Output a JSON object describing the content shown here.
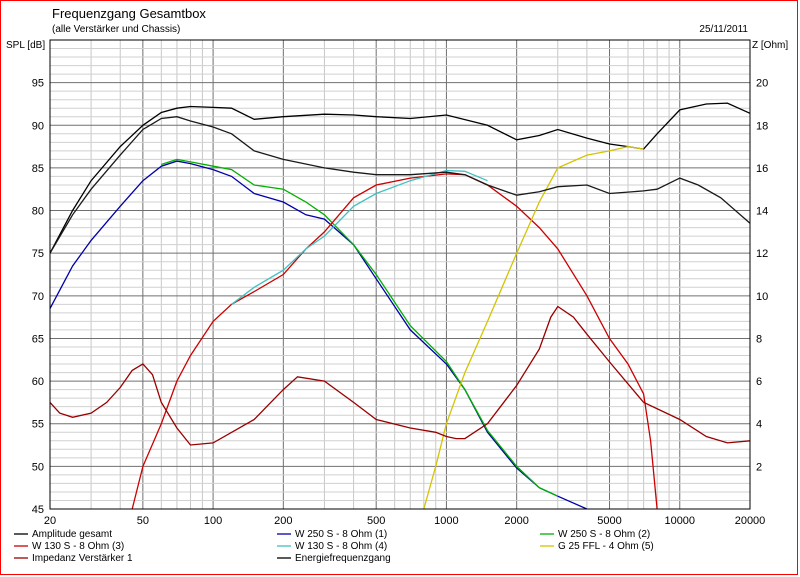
{
  "chart_data": {
    "type": "line",
    "title": "Frequenzgang Gesamtbox",
    "subtitle": "(alle Verstärker und Chassis)",
    "date": "25/11/2011",
    "ylabel": "SPL [dB]",
    "y2label": "Z [Ohm]",
    "x_scale": "log",
    "xlim": [
      20,
      20000
    ],
    "ylim": [
      45,
      100
    ],
    "y2lim": [
      0,
      22
    ],
    "x_ticks": [
      20,
      50,
      100,
      200,
      500,
      1000,
      2000,
      5000,
      10000,
      20000
    ],
    "x_tick_labels": [
      "20",
      "50",
      "100",
      "200",
      "500",
      "1000",
      "2000",
      "5000",
      "10000",
      "20000"
    ],
    "y_ticks": [
      45,
      50,
      55,
      60,
      65,
      70,
      75,
      80,
      85,
      90,
      95
    ],
    "y2_ticks": [
      2,
      4,
      6,
      8,
      10,
      12,
      14,
      16,
      18,
      20
    ],
    "grid": true,
    "legend_position": "bottom",
    "series": [
      {
        "name": "Amplitude gesamt",
        "axis": "y",
        "color": "#000000",
        "x": [
          20,
          25,
          30,
          40,
          50,
          60,
          70,
          80,
          100,
          120,
          150,
          200,
          300,
          400,
          500,
          700,
          1000,
          1500,
          2000,
          2500,
          3000,
          4000,
          5000,
          6000,
          7000,
          8000,
          10000,
          13000,
          16000,
          20000
        ],
        "y": [
          75,
          80,
          83.5,
          87.5,
          90,
          91.5,
          92,
          92.2,
          92.1,
          92,
          90.7,
          91,
          91.3,
          91.2,
          91,
          90.8,
          91.2,
          90,
          88.3,
          88.8,
          89.5,
          88.5,
          87.8,
          87.5,
          87.2,
          89,
          91.8,
          92.5,
          92.6,
          91.4
        ]
      },
      {
        "name": "W 250 S - 8 Ohm  (1)",
        "axis": "y",
        "color": "#0000aa",
        "x": [
          20,
          25,
          30,
          40,
          50,
          60,
          70,
          80,
          100,
          120,
          150,
          200,
          250,
          300,
          400,
          500,
          700,
          1000,
          1200,
          1500,
          2000,
          2500,
          3000,
          4000
        ],
        "y": [
          68.5,
          73.5,
          76.5,
          80.5,
          83.5,
          85.2,
          85.8,
          85.5,
          84.8,
          84,
          82,
          81,
          79.5,
          79,
          76,
          72,
          66,
          62,
          59,
          54,
          49.8,
          47.5,
          46.5,
          45
        ]
      },
      {
        "name": "W 250 S - 8 Ohm  (2)",
        "axis": "y",
        "color": "#00b000",
        "x": [
          60,
          70,
          80,
          100,
          120,
          150,
          200,
          250,
          300,
          400,
          500,
          700,
          1000,
          1200,
          1500,
          2000,
          2500,
          3000
        ],
        "y": [
          85.4,
          86,
          85.7,
          85.2,
          84.8,
          83,
          82.5,
          81,
          79.5,
          76,
          72.5,
          66.5,
          62.3,
          59,
          54.2,
          50,
          47.5,
          46.5
        ]
      },
      {
        "name": "W 130 S - 8 Ohm (3)",
        "axis": "y",
        "color": "#cc0000",
        "x": [
          45,
          50,
          60,
          70,
          80,
          100,
          120,
          150,
          200,
          250,
          300,
          400,
          500,
          700,
          1000,
          1200,
          1500,
          2000,
          2500,
          3000,
          4000,
          5000,
          6000,
          7000,
          7500,
          8000
        ],
        "y": [
          45,
          50,
          55,
          60,
          63,
          67,
          69,
          70.5,
          72.5,
          75.5,
          77.5,
          81.5,
          83,
          83.8,
          84.3,
          84.2,
          83,
          80.5,
          78,
          75.5,
          70,
          65,
          62,
          58.5,
          53,
          45
        ]
      },
      {
        "name": "W 130 S - 8 Ohm (4)",
        "axis": "y",
        "color": "#40c0c0",
        "x": [
          120,
          150,
          200,
          250,
          300,
          400,
          500,
          700,
          1000,
          1200,
          1500
        ],
        "y": [
          69,
          71,
          73,
          75.5,
          77,
          80.5,
          82,
          83.5,
          84.7,
          84.6,
          83.5
        ]
      },
      {
        "name": "G 25 FFL - 4 Ohm (5)",
        "axis": "y",
        "color": "#d4c400",
        "x": [
          800,
          900,
          1000,
          1200,
          1500,
          2000,
          2500,
          3000,
          4000,
          5000,
          6000,
          7000
        ],
        "y": [
          45,
          50,
          55,
          61,
          67,
          75,
          81,
          85,
          86.5,
          87,
          87.5,
          87.2
        ]
      },
      {
        "name": "Impedanz Verstärker 1",
        "axis": "y2",
        "color": "#990000",
        "x": [
          20,
          22,
          25,
          30,
          35,
          40,
          45,
          50,
          55,
          60,
          70,
          80,
          100,
          150,
          200,
          230,
          300,
          400,
          500,
          700,
          900,
          1000,
          1100,
          1200,
          1500,
          2000,
          2500,
          2800,
          3000,
          3500,
          4000,
          5000,
          7000,
          10000,
          13000,
          16000,
          20000
        ],
        "y": [
          5.0,
          4.5,
          4.3,
          4.5,
          5.0,
          5.7,
          6.5,
          6.8,
          6.3,
          5.0,
          3.8,
          3.0,
          3.1,
          4.2,
          5.6,
          6.2,
          6.0,
          5.0,
          4.2,
          3.8,
          3.6,
          3.4,
          3.3,
          3.3,
          4.0,
          5.8,
          7.5,
          9.0,
          9.5,
          9.0,
          8.2,
          6.9,
          5.0,
          4.2,
          3.4,
          3.1,
          3.2
        ]
      },
      {
        "name": "Energiefrequenzgang",
        "axis": "y",
        "color": "#1a1a1a",
        "x": [
          20,
          25,
          30,
          40,
          50,
          60,
          70,
          80,
          100,
          120,
          150,
          200,
          300,
          400,
          500,
          700,
          1000,
          1200,
          1500,
          2000,
          2500,
          3000,
          4000,
          5000,
          7000,
          8000,
          10000,
          12000,
          15000,
          20000
        ],
        "y": [
          75,
          79.5,
          82.5,
          86.5,
          89.5,
          90.8,
          91,
          90.5,
          89.8,
          89,
          87,
          86,
          85,
          84.5,
          84.2,
          84.2,
          84.5,
          84.2,
          83,
          81.8,
          82.2,
          82.8,
          83,
          82,
          82.3,
          82.5,
          83.8,
          83,
          81.5,
          78.5
        ]
      }
    ],
    "legend": [
      {
        "label": "Amplitude gesamt",
        "color": "#000000"
      },
      {
        "label": "W 250 S - 8 Ohm  (1)",
        "color": "#0000aa"
      },
      {
        "label": "W 250 S - 8 Ohm  (2)",
        "color": "#00b000"
      },
      {
        "label": "W 130 S - 8 Ohm (3)",
        "color": "#cc0000"
      },
      {
        "label": "W 130 S - 8 Ohm (4)",
        "color": "#40c0c0"
      },
      {
        "label": "G 25 FFL - 4 Ohm (5)",
        "color": "#d4c400"
      },
      {
        "label": "Impedanz Verstärker 1",
        "color": "#990000"
      },
      {
        "label": "Energiefrequenzgang",
        "color": "#000000"
      }
    ]
  }
}
